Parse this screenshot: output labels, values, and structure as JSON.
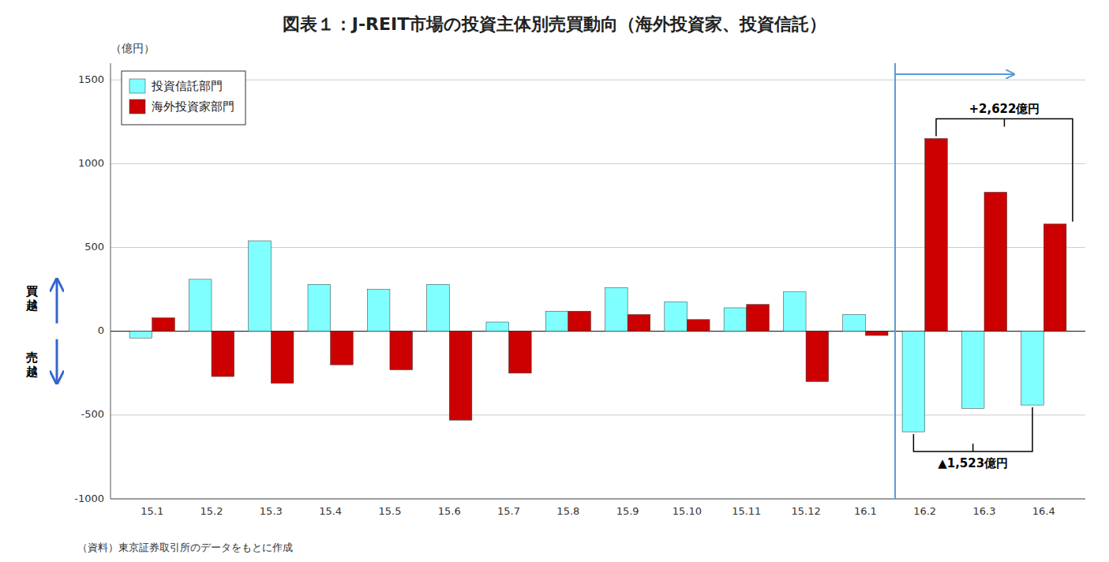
{
  "chart_data": {
    "type": "bar",
    "title": "図表１：J-REIT市場の投資主体別売買動向（海外投資家、投資信託）",
    "y_label": "（億円）",
    "categories": [
      "15.1",
      "15.2",
      "15.3",
      "15.4",
      "15.5",
      "15.6",
      "15.7",
      "15.8",
      "15.9",
      "15.10",
      "15.11",
      "15.12",
      "16.1",
      "16.2",
      "16.3",
      "16.4"
    ],
    "series": [
      {
        "name": "投資信託部門",
        "color": "#7fffff",
        "values": [
          -40,
          310,
          540,
          280,
          250,
          280,
          55,
          120,
          260,
          175,
          140,
          235,
          100,
          -600,
          -460,
          -440
        ]
      },
      {
        "name": "海外投資家部門",
        "color": "#cc0000",
        "values": [
          80,
          -270,
          -310,
          -200,
          -230,
          -530,
          -250,
          120,
          100,
          70,
          160,
          -300,
          -25,
          1150,
          830,
          640
        ]
      }
    ],
    "ylim": [
      -1000,
      1600
    ],
    "yticks": [
      -1000,
      -500,
      0,
      500,
      1000,
      1500
    ],
    "grid": true,
    "legend": "upper left",
    "annotations": [
      "（資料）東京証券取引所のデータをもとに作成",
      "買\n越",
      "売\n越",
      "+2,622億円",
      "▲1,523億円"
    ]
  }
}
